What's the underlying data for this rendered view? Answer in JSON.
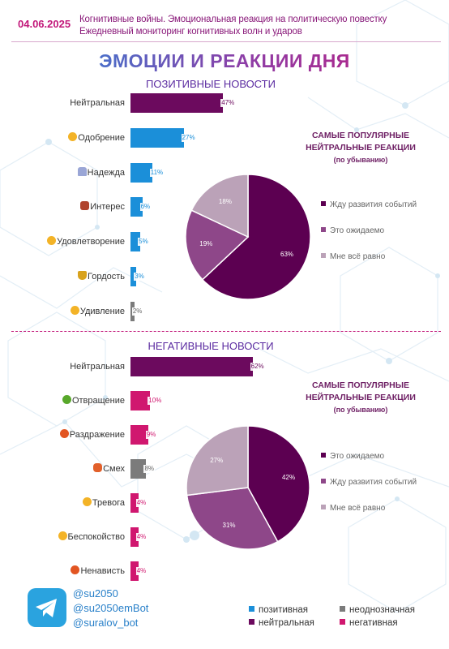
{
  "header": {
    "date": "04.06.2025",
    "line1": "Когнитивные войны. Эмоциональная реакция на политическую повестку",
    "line2": "Ежедневный мониторинг когнитивных волн и ударов"
  },
  "title": "ЭМОЦИИ И РЕАКЦИИ ДНЯ",
  "colors": {
    "positive": "#1b8fd9",
    "neutral": "#6c0a5e",
    "ambiguous": "#7b7b7b",
    "negative": "#d0176f",
    "pie_dark": "#5c0051",
    "pie_mid": "#8e4789",
    "pie_light": "#bba2b8"
  },
  "chart_data": [
    {
      "type": "bar",
      "title": "ПОЗИТИВНЫЕ НОВОСТИ",
      "orientation": "horizontal",
      "categories": [
        {
          "label": "Нейтральная",
          "icon": "",
          "value": 47,
          "value_label": "47%",
          "group": "neutral"
        },
        {
          "label": "Одобрение",
          "icon": "heart-icon",
          "value": 27,
          "value_label": "27%",
          "group": "positive"
        },
        {
          "label": "Надежда",
          "icon": "praying-hands-icon",
          "value": 11,
          "value_label": "11%",
          "group": "positive"
        },
        {
          "label": "Интерес",
          "icon": "thinking-icon",
          "value": 6,
          "value_label": "6%",
          "group": "positive"
        },
        {
          "label": "Удовлетворение",
          "icon": "satisfied-face-icon",
          "value": 5,
          "value_label": "5%",
          "group": "positive"
        },
        {
          "label": "Гордость",
          "icon": "trophy-icon",
          "value": 3,
          "value_label": "3%",
          "group": "positive"
        },
        {
          "label": "Удивление",
          "icon": "surprised-face-icon",
          "value": 2,
          "value_label": "2%",
          "group": "ambiguous"
        }
      ]
    },
    {
      "type": "pie",
      "title": "САМЫЕ ПОПУЛЯРНЫЕ НЕЙТРАЛЬНЫЕ РЕАКЦИИ",
      "subtitle": "(по убыванию)",
      "slices": [
        {
          "label": "Жду развития событий",
          "value": 63,
          "value_label": "63%",
          "color": "#5c0051"
        },
        {
          "label": "Это ожидаемо",
          "value": 19,
          "value_label": "19%",
          "color": "#8e4789"
        },
        {
          "label": "Мне всё равно",
          "value": 18,
          "value_label": "18%",
          "color": "#bba2b8"
        }
      ]
    },
    {
      "type": "bar",
      "title": "НЕГАТИВНЫЕ НОВОСТИ",
      "orientation": "horizontal",
      "categories": [
        {
          "label": "Нейтральная",
          "icon": "",
          "value": 62,
          "value_label": "62%",
          "group": "neutral"
        },
        {
          "label": "Отвращение",
          "icon": "disgusted-face-icon",
          "value": 10,
          "value_label": "10%",
          "group": "negative"
        },
        {
          "label": "Раздражение",
          "icon": "annoyed-face-icon",
          "value": 9,
          "value_label": "9%",
          "group": "negative"
        },
        {
          "label": "Смех",
          "icon": "laughing-cat-icon",
          "value": 8,
          "value_label": "8%",
          "group": "ambiguous"
        },
        {
          "label": "Тревога",
          "icon": "worried-face-icon",
          "value": 4,
          "value_label": "4%",
          "group": "negative"
        },
        {
          "label": "Беспокойство",
          "icon": "anxious-face-icon",
          "value": 4,
          "value_label": "4%",
          "group": "negative"
        },
        {
          "label": "Ненависть",
          "icon": "angry-face-icon",
          "value": 4,
          "value_label": "4%",
          "group": "negative"
        }
      ]
    },
    {
      "type": "pie",
      "title": "САМЫЕ ПОПУЛЯРНЫЕ НЕЙТРАЛЬНЫЕ РЕАКЦИИ",
      "subtitle": "(по убыванию)",
      "slices": [
        {
          "label": "Это ожидаемо",
          "value": 42,
          "value_label": "42%",
          "color": "#5c0051"
        },
        {
          "label": "Жду развития событий",
          "value": 31,
          "value_label": "31%",
          "color": "#8e4789"
        },
        {
          "label": "Мне всё равно",
          "value": 27,
          "value_label": "27%",
          "color": "#bba2b8"
        }
      ]
    }
  ],
  "footer": {
    "handles": [
      "@su2050",
      "@su2050emBot",
      "@suralov_bot"
    ],
    "legend": [
      {
        "label": "позитивная",
        "color": "#1b8fd9"
      },
      {
        "label": "неоднозначная",
        "color": "#7b7b7b"
      },
      {
        "label": "нейтральная",
        "color": "#6c0a5e"
      },
      {
        "label": "негативная",
        "color": "#d0176f"
      }
    ]
  }
}
